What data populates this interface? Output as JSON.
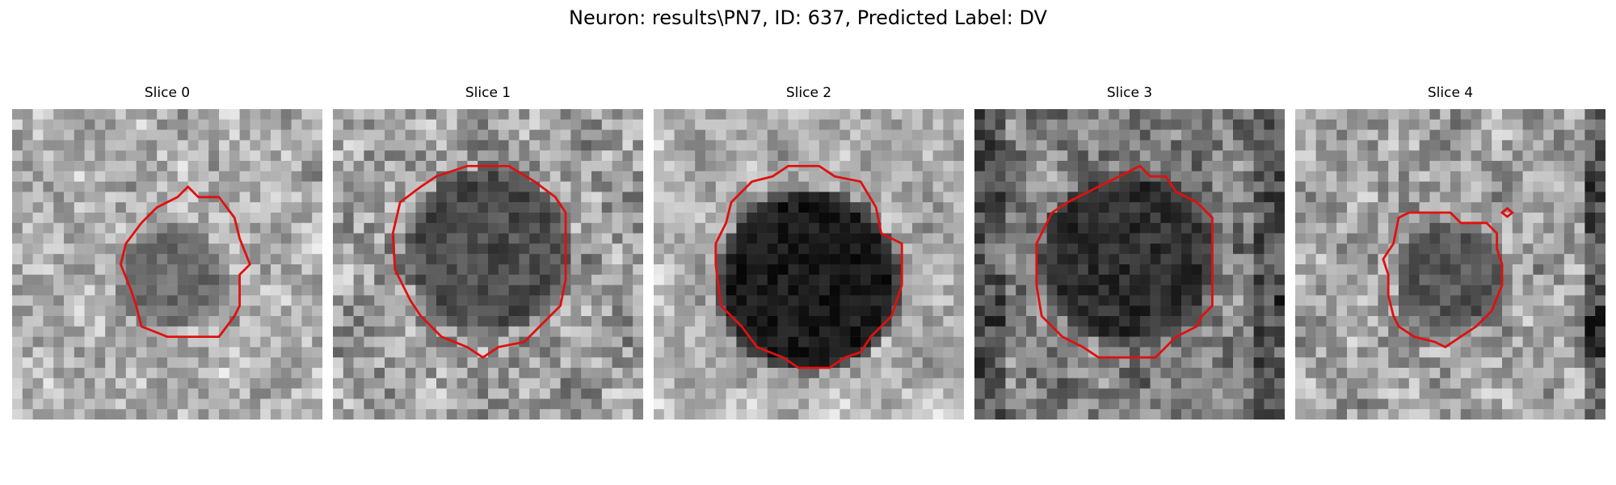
{
  "figure": {
    "title": "Neuron: results\\PN7, ID: 637, Predicted Label: DV",
    "contour_color": "#e01010",
    "image_colormap": "gray"
  },
  "panels": [
    {
      "title": "Slice 0"
    },
    {
      "title": "Slice 1"
    },
    {
      "title": "Slice 2"
    },
    {
      "title": "Slice 3"
    },
    {
      "title": "Slice 4"
    }
  ]
}
